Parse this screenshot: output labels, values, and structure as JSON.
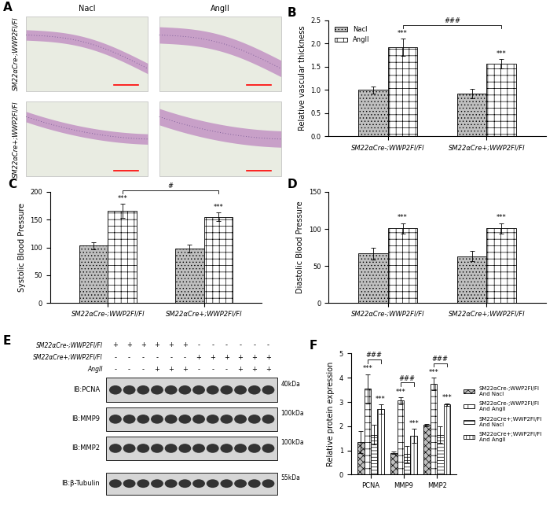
{
  "histology": {
    "panel_label": "A",
    "columns": [
      "Nacl",
      "AngII"
    ],
    "rows": [
      "SM22αCre-;WWP2Fl/Fl",
      "SM22αCre+;WWP2Fl/Fl"
    ]
  },
  "chart_data": [
    {
      "panel_label": "B",
      "type": "bar",
      "y_label": "Relative vascular thickness",
      "categories": [
        "SM22αCre-;WWP2Fl/Fl",
        "SM22αCre+;WWP2Fl/Fl"
      ],
      "series": [
        {
          "name": "Nacl",
          "color": "#bfbfbf",
          "values": [
            1.0,
            0.92
          ],
          "errors": [
            0.08,
            0.1
          ]
        },
        {
          "name": "AngII",
          "color": "#ffffff",
          "values": [
            1.92,
            1.56
          ],
          "errors": [
            0.18,
            0.1
          ]
        }
      ],
      "ylim": [
        0,
        2.5
      ],
      "yticks": [
        {
          "value": 0,
          "label": "0.0"
        },
        {
          "value": 0.5,
          "label": "0.5"
        },
        {
          "value": 1.0,
          "label": "1.0"
        },
        {
          "value": 1.5,
          "label": "1.5"
        },
        {
          "value": 2.0,
          "label": "2.0"
        },
        {
          "value": 2.5,
          "label": "2.5"
        }
      ],
      "legend": "upper left",
      "annotations": [
        {
          "text": "***",
          "series": "AngII",
          "category": "SM22αCre-;WWP2Fl/Fl"
        },
        {
          "text": "***",
          "series": "AngII",
          "category": "SM22αCre+;WWP2Fl/Fl"
        }
      ],
      "brackets": [
        {
          "text": "###",
          "from": {
            "series": "AngII",
            "category": "SM22αCre-;WWP2Fl/Fl"
          },
          "to": {
            "series": "AngII",
            "category": "SM22αCre+;WWP2Fl/Fl"
          }
        }
      ]
    },
    {
      "panel_label": "C",
      "type": "bar",
      "y_label": "Systolic Blood Pressure",
      "categories": [
        "SM22αCre-;WWP2Fl/Fl",
        "SM22αCre+;WWP2Fl/Fl"
      ],
      "series": [
        {
          "name": "Nacl",
          "color": "#bfbfbf",
          "values": [
            103,
            98
          ],
          "errors": [
            7,
            7
          ]
        },
        {
          "name": "AngII",
          "color": "#ffffff",
          "values": [
            166,
            155
          ],
          "errors": [
            13,
            8
          ]
        }
      ],
      "ylim": [
        0,
        200
      ],
      "yticks": [
        0,
        50,
        100,
        150,
        200
      ],
      "annotations": [
        {
          "text": "***",
          "series": "AngII",
          "category": "SM22αCre-;WWP2Fl/Fl"
        },
        {
          "text": "***",
          "series": "AngII",
          "category": "SM22αCre+;WWP2Fl/Fl"
        }
      ],
      "brackets": [
        {
          "text": "#",
          "from": {
            "series": "AngII",
            "category": "SM22αCre-;WWP2Fl/Fl"
          },
          "to": {
            "series": "AngII",
            "category": "SM22αCre+;WWP2Fl/Fl"
          }
        }
      ]
    },
    {
      "panel_label": "D",
      "type": "bar",
      "y_label": "Diastolic Blood Pressure",
      "categories": [
        "SM22αCre-;WWP2Fl/Fl",
        "SM22αCre+;WWP2Fl/Fl"
      ],
      "series": [
        {
          "name": "Nacl",
          "color": "#bfbfbf",
          "values": [
            67,
            63
          ],
          "errors": [
            8,
            7
          ]
        },
        {
          "name": "AngII",
          "color": "#ffffff",
          "values": [
            101,
            101
          ],
          "errors": [
            7,
            7
          ]
        }
      ],
      "ylim": [
        0,
        150
      ],
      "yticks": [
        0,
        50,
        100,
        150
      ],
      "annotations": [
        {
          "text": "***",
          "series": "AngII",
          "category": "SM22αCre-;WWP2Fl/Fl"
        },
        {
          "text": "***",
          "series": "AngII",
          "category": "SM22αCre+;WWP2Fl/Fl"
        }
      ]
    },
    {
      "panel_label": "F",
      "type": "bar",
      "y_label": "Relative protein expression",
      "categories": [
        "PCNA",
        "MMP9",
        "MMP2"
      ],
      "series": [
        {
          "name": "SM22αCre-;WWP2Fl/Fl\nAnd Nacl",
          "color": "#bfbfbf",
          "values": [
            1.35,
            0.9,
            2.05
          ],
          "errors": [
            0.45,
            0.05,
            0.05
          ]
        },
        {
          "name": "SM22αCre-;WWP2Fl/Fl\nAnd AngII",
          "color": "#ffffff",
          "values": [
            3.55,
            3.05,
            3.75
          ],
          "errors": [
            0.6,
            0.15,
            0.25
          ]
        },
        {
          "name": "SM22αCre+;WWP2Fl/Fl\nAnd Nacl",
          "color": "#ffffff",
          "values": [
            1.65,
            0.85,
            1.65
          ],
          "errors": [
            0.4,
            0.35,
            0.35
          ]
        },
        {
          "name": "SM22αCre+;WWP2Fl/Fl\nAnd AngII",
          "color": "#ffffff",
          "values": [
            2.7,
            1.6,
            2.9
          ],
          "errors": [
            0.2,
            0.3,
            0.05
          ]
        }
      ],
      "ylim": [
        0,
        5
      ],
      "yticks": [
        0,
        1,
        2,
        3,
        4,
        5
      ],
      "legend": "right",
      "annotations": [
        {
          "text": "***",
          "series": "SM22αCre-;WWP2Fl/Fl\nAnd AngII",
          "category": "PCNA"
        },
        {
          "text": "***",
          "series": "SM22αCre+;WWP2Fl/Fl\nAnd AngII",
          "category": "PCNA"
        },
        {
          "text": "***",
          "series": "SM22αCre-;WWP2Fl/Fl\nAnd AngII",
          "category": "MMP9"
        },
        {
          "text": "***",
          "series": "SM22αCre+;WWP2Fl/Fl\nAnd AngII",
          "category": "MMP9"
        },
        {
          "text": "***",
          "series": "SM22αCre-;WWP2Fl/Fl\nAnd AngII",
          "category": "MMP2"
        },
        {
          "text": "***",
          "series": "SM22αCre+;WWP2Fl/Fl\nAnd AngII",
          "category": "MMP2"
        }
      ],
      "brackets": [
        {
          "text": "###",
          "from": {
            "series": "SM22αCre-;WWP2Fl/Fl\nAnd AngII",
            "category": "PCNA"
          },
          "to": {
            "series": "SM22αCre+;WWP2Fl/Fl\nAnd AngII",
            "category": "PCNA"
          }
        },
        {
          "text": "###",
          "from": {
            "series": "SM22αCre-;WWP2Fl/Fl\nAnd AngII",
            "category": "MMP9"
          },
          "to": {
            "series": "SM22αCre+;WWP2Fl/Fl\nAnd AngII",
            "category": "MMP9"
          }
        },
        {
          "text": "###",
          "from": {
            "series": "SM22αCre-;WWP2Fl/Fl\nAnd AngII",
            "category": "MMP2"
          },
          "to": {
            "series": "SM22αCre+;WWP2Fl/Fl\nAnd AngII",
            "category": "MMP2"
          }
        }
      ]
    }
  ],
  "blot": {
    "panel_label": "E",
    "conditions": [
      {
        "label": "SM22αCre-;WWP2Fl/Fl",
        "signs": [
          "+",
          "+",
          "+",
          "+",
          "+",
          "+",
          "-",
          "-",
          "-",
          "-",
          "-",
          "-"
        ]
      },
      {
        "label": "SM22αCre+;WWP2Fl/Fl",
        "signs": [
          "-",
          "-",
          "-",
          "-",
          "-",
          "-",
          "+",
          "+",
          "+",
          "+",
          "+",
          "+"
        ]
      },
      {
        "label": "AngII",
        "signs": [
          "-",
          "-",
          "-",
          "+",
          "+",
          "+",
          "-",
          "-",
          "-",
          "+",
          "+",
          "+"
        ]
      }
    ],
    "bands": [
      {
        "label": "IB:PCNA",
        "kda": "40kDa"
      },
      {
        "label": "IB:MMP9",
        "kda": "100kDa"
      },
      {
        "label": "IB:MMP2",
        "kda": "100kDa"
      },
      {
        "label": "IB:β-Tubulin",
        "kda": "55kDa"
      }
    ]
  }
}
